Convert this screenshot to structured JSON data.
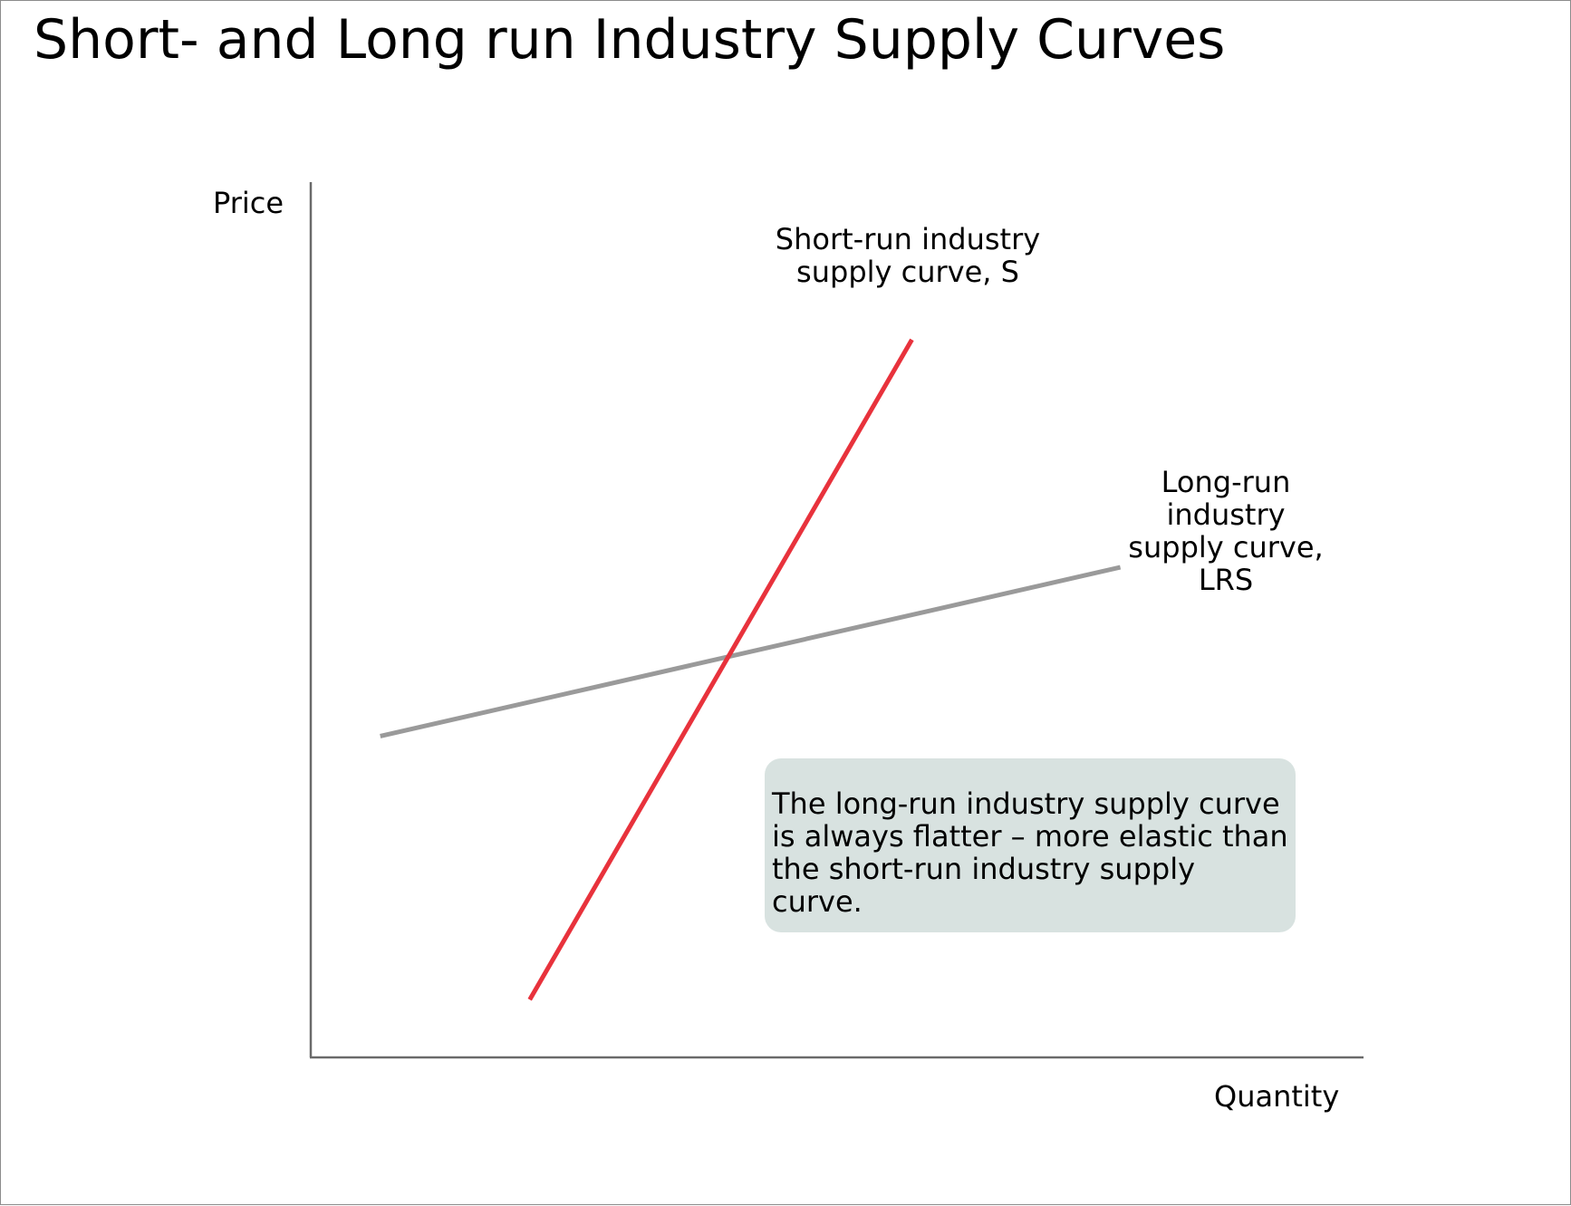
{
  "title": "Short- and Long run Industry Supply Curves",
  "colors": {
    "short_run": "#e8323c",
    "long_run": "#9a9a9a",
    "axes": "#6a6a6a",
    "note_background": "#d8e2e0"
  },
  "chart_data": {
    "type": "line",
    "title": "",
    "xlabel": "Quantity",
    "ylabel": "Price",
    "xlim": [
      0,
      100
    ],
    "ylim": [
      0,
      100
    ],
    "grid": false,
    "series": [
      {
        "name": "Short-run industry supply curve, S",
        "label": "Short-run industry\nsupply curve, S",
        "color": "#e8323c",
        "points": [
          [
            20.8,
            6.6
          ],
          [
            57.1,
            82
          ]
        ]
      },
      {
        "name": "Long-run industry supply curve, LRS",
        "label": "Long-run\nindustry\nsupply curve,\nLRS",
        "color": "#9a9a9a",
        "points": [
          [
            6.6,
            36.7
          ],
          [
            76.9,
            56
          ]
        ]
      }
    ],
    "annotations": [
      {
        "text": "The long-run industry supply curve is always flatter – more elastic than the short-run industry supply curve."
      }
    ]
  }
}
